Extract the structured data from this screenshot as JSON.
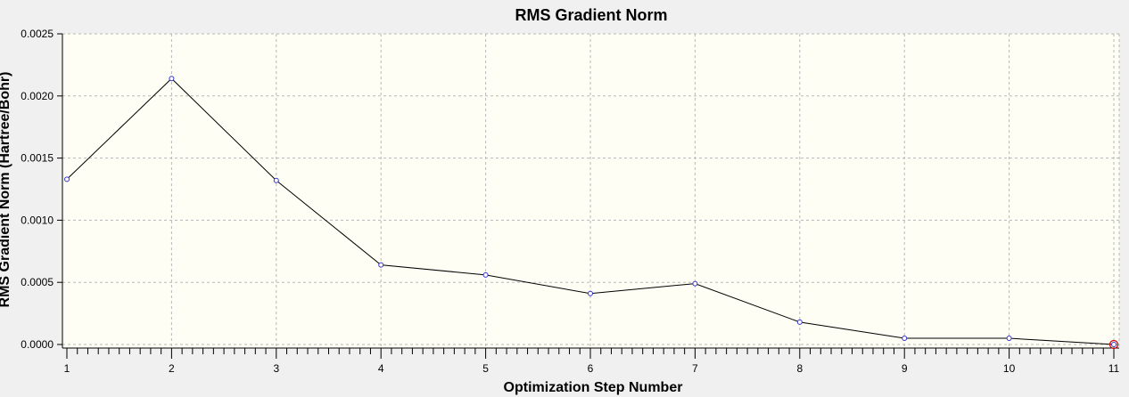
{
  "chart_data": {
    "type": "line",
    "title": "RMS Gradient Norm",
    "xlabel": "Optimization Step Number",
    "ylabel": "RMS Gradient Norm (Hartree/Bohr)",
    "x": [
      1,
      2,
      3,
      4,
      5,
      6,
      7,
      8,
      9,
      10,
      11
    ],
    "series": [
      {
        "values": [
          0.00133,
          0.00214,
          0.00132,
          0.00064,
          0.00056,
          0.00041,
          0.00049,
          0.00018,
          5e-05,
          5e-05,
          0.0
        ]
      }
    ],
    "xlim": [
      1,
      11
    ],
    "ylim": [
      0,
      0.0025
    ],
    "x_ticks": [
      "1",
      "2",
      "3",
      "4",
      "5",
      "6",
      "7",
      "8",
      "9",
      "10",
      "11"
    ],
    "y_ticks": [
      "0.0000",
      "0.0005",
      "0.0010",
      "0.0015",
      "0.0020",
      "0.0025"
    ],
    "grid": true,
    "colors": {
      "plot_background": "#fefef4",
      "line": "#000000",
      "marker": "#3333cc",
      "last_point_highlight": "#cc0000",
      "grid": "#b8b8b8"
    }
  }
}
